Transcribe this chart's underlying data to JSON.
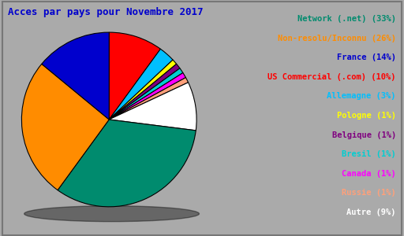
{
  "title": "Acces par pays pour Novembre 2017",
  "legend_labels": [
    "Network (.net) (33%)",
    "Non-resolu/Inconnu (26%)",
    "France (14%)",
    "US Commercial (.com) (10%)",
    "Allemagne (3%)",
    "Pologne (1%)",
    "Belgique (1%)",
    "Bresil (1%)",
    "Canada (1%)",
    "Russie (1%)",
    "Autre (9%)"
  ],
  "values": [
    33,
    26,
    14,
    10,
    3,
    1,
    1,
    1,
    1,
    1,
    9
  ],
  "slice_colors": [
    "#008B6E",
    "#FF8C00",
    "#0000CD",
    "#FF0000",
    "#00BFFF",
    "#FFFF00",
    "#800080",
    "#00CED1",
    "#FF00FF",
    "#FFA07A",
    "#FFFFFF"
  ],
  "legend_text_colors": [
    "#008B6E",
    "#FF8C00",
    "#0000CD",
    "#FF0000",
    "#00BFFF",
    "#FFFF00",
    "#800080",
    "#00CED1",
    "#FF00FF",
    "#FFA07A",
    "#FFFFFF"
  ],
  "background_color": "#AAAAAA",
  "inner_bg_color": "#C0C0C0",
  "title_color": "#0000CD",
  "title_fontsize": 9,
  "legend_fontsize": 7.5,
  "startangle": 90
}
